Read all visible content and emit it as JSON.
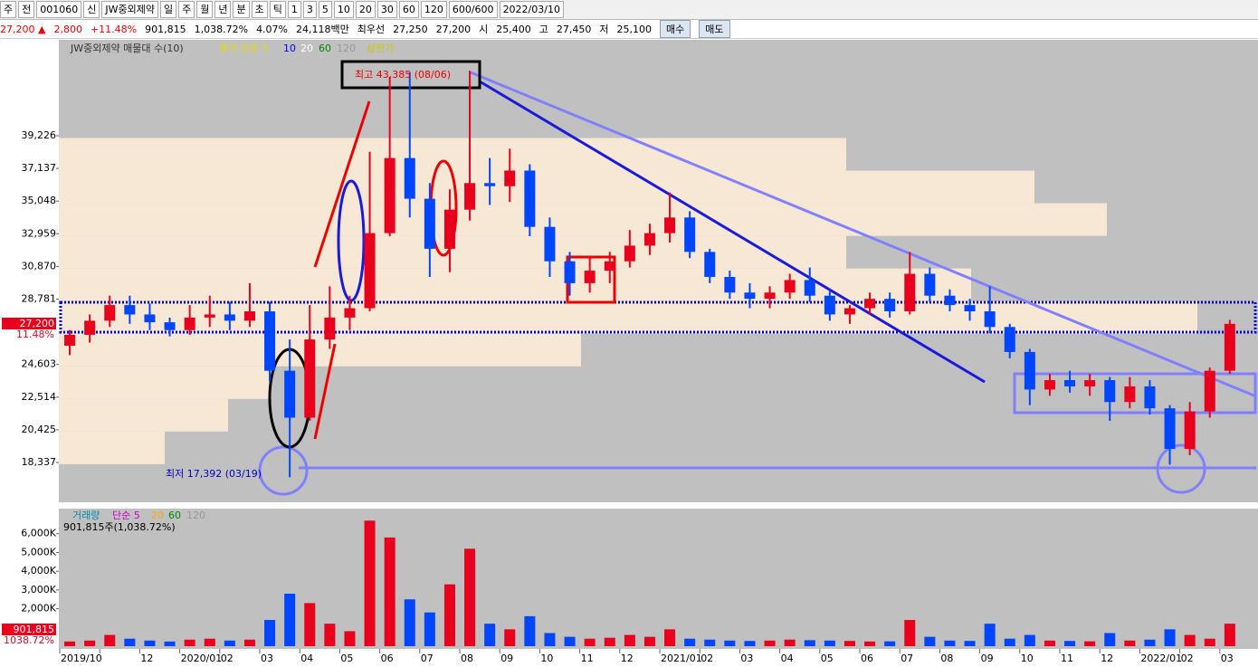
{
  "toolbar": {
    "items": [
      "주",
      "전",
      "001060",
      "신",
      "JW중외제약",
      "일",
      "주",
      "월",
      "년",
      "분",
      "초",
      "틱",
      "1",
      "3",
      "5",
      "10",
      "20",
      "30",
      "60",
      "120",
      "600/600",
      "2022/03/10"
    ]
  },
  "quote": {
    "items": [
      "27,200 ▲",
      "2,800",
      "+11.48%",
      "901,815",
      "1,038.72%",
      "4.07%",
      "24,118백만",
      "최우선",
      "27,250",
      "27,200",
      "시",
      "25,400",
      "고",
      "27,450",
      "저",
      "25,100"
    ],
    "buttons": [
      "매수",
      "매도"
    ]
  },
  "chart_data": {
    "type": "candlestick",
    "title": "JW중외제약 매물대 수(10)",
    "legend": [
      "종가 단순 5",
      "10",
      "20",
      "60",
      "120",
      "상한가"
    ],
    "categories": [
      "2019/10",
      null,
      "12",
      "2020/01",
      "02",
      "03",
      "04",
      "05",
      "06",
      "07",
      "08",
      "09",
      "10",
      "11",
      "12",
      "2021/01",
      "02",
      "03",
      "04",
      "05",
      "06",
      "07",
      "08",
      "09",
      "10",
      "11",
      "12",
      "2022/01",
      "02",
      "03"
    ],
    "ylim": [
      15790,
      45360
    ],
    "yticks": [
      {
        "value": 39226,
        "label": "39,226"
      },
      {
        "value": 37137,
        "label": "37,137"
      },
      {
        "value": 35048,
        "label": "35,048"
      },
      {
        "value": 32959,
        "label": "32,959"
      },
      {
        "value": 30870,
        "label": "30,870"
      },
      {
        "value": 28781,
        "label": "28,781"
      },
      {
        "value": 24603,
        "label": "24,603"
      },
      {
        "value": 22514,
        "label": "22,514"
      },
      {
        "value": 20425,
        "label": "20,425"
      },
      {
        "value": 18337,
        "label": "18,337"
      }
    ],
    "last_price": {
      "value": 27200,
      "label": "27,200",
      "change": "11.48%"
    },
    "annotations": [
      "최고 43,385 (08/06)",
      "최저 17,392 (03/19)"
    ],
    "up_color": "#e8001c",
    "down_color": "#0046ff",
    "ohlc": [
      [
        25800,
        26800,
        25200,
        26500
      ],
      [
        26500,
        27800,
        26000,
        27400
      ],
      [
        27400,
        29000,
        27000,
        28400
      ],
      [
        28400,
        29000,
        27200,
        27800
      ],
      [
        27800,
        28500,
        26800,
        27300
      ],
      [
        27300,
        27600,
        26400,
        26800
      ],
      [
        26800,
        28400,
        26500,
        27600
      ],
      [
        27600,
        29000,
        27000,
        27800
      ],
      [
        27800,
        28600,
        26800,
        27400
      ],
      [
        27400,
        29800,
        27000,
        28000
      ],
      [
        28000,
        28600,
        23500,
        24200
      ],
      [
        24200,
        26200,
        17392,
        21200
      ],
      [
        21200,
        28400,
        21000,
        26200
      ],
      [
        26200,
        29600,
        25600,
        27600
      ],
      [
        27600,
        29000,
        26800,
        28200
      ],
      [
        28200,
        38200,
        28000,
        33000
      ],
      [
        33000,
        43000,
        32800,
        37800
      ],
      [
        37800,
        43300,
        34000,
        35200
      ],
      [
        35200,
        36200,
        30200,
        32000
      ],
      [
        32000,
        35800,
        30500,
        34500
      ],
      [
        34500,
        43385,
        33800,
        36200
      ],
      [
        36200,
        37800,
        34800,
        36000
      ],
      [
        36000,
        38400,
        35000,
        37000
      ],
      [
        37000,
        37400,
        32800,
        33400
      ],
      [
        33400,
        34000,
        30200,
        31200
      ],
      [
        31200,
        31800,
        29000,
        29800
      ],
      [
        29800,
        31400,
        29200,
        30600
      ],
      [
        30600,
        31800,
        29800,
        31200
      ],
      [
        31200,
        33200,
        30800,
        32200
      ],
      [
        32200,
        33600,
        31600,
        33000
      ],
      [
        33000,
        35600,
        32400,
        34000
      ],
      [
        34000,
        34400,
        31400,
        31800
      ],
      [
        31800,
        32000,
        29800,
        30200
      ],
      [
        30200,
        30600,
        28800,
        29200
      ],
      [
        29200,
        29800,
        28200,
        28800
      ],
      [
        28800,
        29600,
        28200,
        29200
      ],
      [
        29200,
        30400,
        28800,
        30000
      ],
      [
        30000,
        30800,
        28600,
        29000
      ],
      [
        29000,
        29400,
        27400,
        27800
      ],
      [
        27800,
        28400,
        27200,
        28200
      ],
      [
        28200,
        29200,
        27800,
        28800
      ],
      [
        28800,
        29200,
        27600,
        28000
      ],
      [
        28000,
        31800,
        27800,
        30400
      ],
      [
        30400,
        30800,
        28600,
        29000
      ],
      [
        29000,
        29400,
        28000,
        28400
      ],
      [
        28400,
        28800,
        27400,
        28000
      ],
      [
        28000,
        29600,
        26600,
        27000
      ],
      [
        27000,
        27200,
        25000,
        25400
      ],
      [
        25400,
        25600,
        22000,
        23000
      ],
      [
        23000,
        24000,
        22600,
        23600
      ],
      [
        23600,
        24200,
        22800,
        23200
      ],
      [
        23200,
        24000,
        22600,
        23600
      ],
      [
        23600,
        23800,
        21000,
        22200
      ],
      [
        22200,
        23800,
        21800,
        23200
      ],
      [
        23200,
        23600,
        21400,
        21800
      ],
      [
        21800,
        22000,
        18200,
        19200
      ],
      [
        19200,
        22200,
        18800,
        21600
      ],
      [
        21600,
        24400,
        21200,
        24200
      ],
      [
        24200,
        27450,
        24000,
        27200
      ]
    ],
    "volume_profile": {
      "bins": [
        18230,
        20315,
        22400,
        24485,
        26570,
        28655,
        30740,
        32825,
        34910,
        36995,
        39080
      ],
      "values": [
        117,
        187,
        235,
        577,
        1258,
        1008,
        870,
        1158,
        1078,
        870
      ],
      "xlim": [
        0,
        1325
      ],
      "color": "#f7e8d6"
    },
    "volume": {
      "title": "거래량",
      "legend": [
        "단순 5",
        "20",
        "60",
        "120"
      ],
      "info": "901,815주(1,038.72%)",
      "last": {
        "label": "901,815",
        "change": "1038.72%"
      },
      "ylim": [
        0,
        7340000
      ],
      "yticks": [
        {
          "value": 6000000,
          "label": "6,000K"
        },
        {
          "value": 5000000,
          "label": "5,000K"
        },
        {
          "value": 4000000,
          "label": "4,000K"
        },
        {
          "value": 3000000,
          "label": "3,000K"
        },
        {
          "value": 2000000,
          "label": "2,000K"
        }
      ],
      "values": [
        250000,
        300000,
        600000,
        400000,
        300000,
        250000,
        350000,
        400000,
        300000,
        350000,
        1400000,
        2800000,
        2300000,
        1200000,
        800000,
        6700000,
        5800000,
        2500000,
        1800000,
        3300000,
        5200000,
        1200000,
        900000,
        1600000,
        700000,
        500000,
        400000,
        450000,
        600000,
        500000,
        900000,
        400000,
        350000,
        300000,
        280000,
        300000,
        350000,
        320000,
        300000,
        280000,
        250000,
        260000,
        1400000,
        500000,
        300000,
        280000,
        1200000,
        400000,
        600000,
        300000,
        280000,
        260000,
        700000,
        300000,
        350000,
        900000,
        600000,
        400000,
        1200000
      ]
    }
  }
}
